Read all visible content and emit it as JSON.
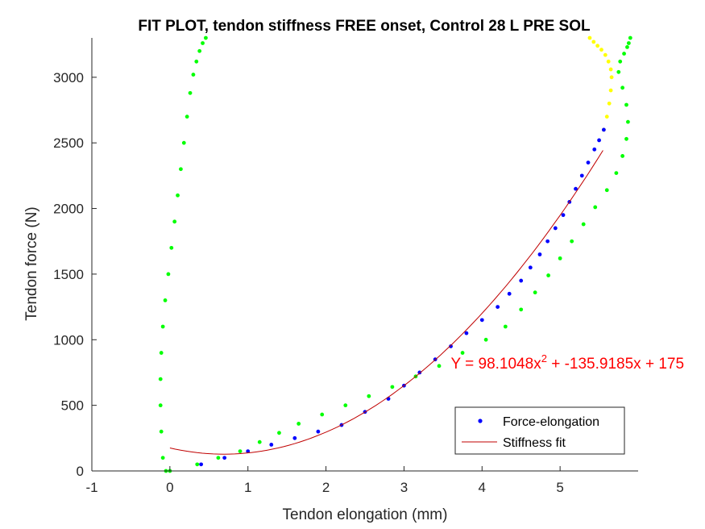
{
  "chart_data": {
    "type": "scatter",
    "title": "FIT PLOT, tendon stiffness FREE onset, Control 28 L PRE SOL",
    "xlabel": "Tendon elongation (mm)",
    "ylabel": "Tendon force (N)",
    "xlim": [
      -1,
      6
    ],
    "ylim": [
      0,
      3300
    ],
    "xticks": [
      -1,
      0,
      1,
      2,
      3,
      4,
      5
    ],
    "xtick_labels": [
      "-1",
      "0",
      "1",
      "2",
      "3",
      "4",
      "5"
    ],
    "yticks": [
      0,
      500,
      1000,
      1500,
      2000,
      2500,
      3000
    ],
    "ytick_labels": [
      "0",
      "500",
      "1000",
      "1500",
      "2000",
      "2500",
      "3000"
    ],
    "grid": false,
    "legend_position": "bottom-right",
    "legend": [
      {
        "label": "Force-elongation",
        "marker": "dot",
        "color": "#0000ff"
      },
      {
        "label": "Stiffness fit",
        "marker": "line",
        "color": "#c00000"
      }
    ],
    "annotation": {
      "text": "Y = 98.1048x",
      "superscript": "2",
      "rest": " + -135.9185x + 175",
      "color": "#ff0000",
      "x": 3.6,
      "y": 780
    },
    "fit": {
      "a": 98.1048,
      "b": -135.9185,
      "c": 175,
      "x_range": [
        0,
        5.55
      ],
      "color": "#c00000"
    },
    "series": [
      {
        "name": "Force-elongation",
        "color": "#0000ff",
        "x": [
          0.4,
          0.7,
          1.0,
          1.3,
          1.6,
          1.9,
          2.2,
          2.5,
          2.8,
          3.0,
          3.2,
          3.4,
          3.6,
          3.8,
          4.0,
          4.2,
          4.35,
          4.5,
          4.62,
          4.74,
          4.84,
          4.94,
          5.04,
          5.12,
          5.2,
          5.28,
          5.36,
          5.44,
          5.5,
          5.56
        ],
        "y": [
          50,
          100,
          150,
          200,
          250,
          300,
          350,
          450,
          550,
          650,
          750,
          850,
          950,
          1050,
          1150,
          1250,
          1350,
          1450,
          1550,
          1650,
          1750,
          1850,
          1950,
          2050,
          2150,
          2250,
          2350,
          2450,
          2520,
          2600
        ]
      },
      {
        "color": "#00ff00",
        "x": [
          0.0,
          0.35,
          0.62,
          0.9,
          1.15,
          1.4,
          1.65,
          1.95,
          2.25,
          2.55,
          2.85,
          3.15,
          3.45,
          3.75,
          4.05,
          4.3,
          4.5,
          4.68,
          4.85,
          5.0,
          5.15,
          5.3,
          5.45,
          5.6,
          5.72,
          5.8,
          5.85,
          5.87,
          5.85,
          5.8,
          5.75,
          5.77,
          5.82,
          5.86,
          5.88,
          5.9
        ],
        "y": [
          0,
          50,
          100,
          150,
          220,
          290,
          360,
          430,
          500,
          570,
          640,
          720,
          800,
          900,
          1000,
          1100,
          1230,
          1360,
          1490,
          1620,
          1750,
          1880,
          2010,
          2140,
          2270,
          2400,
          2530,
          2660,
          2790,
          2920,
          3040,
          3120,
          3180,
          3230,
          3260,
          3300
        ]
      },
      {
        "color": "#00ff00",
        "x": [
          -0.05,
          -0.09,
          -0.11,
          -0.12,
          -0.12,
          -0.11,
          -0.09,
          -0.06,
          -0.02,
          0.02,
          0.06,
          0.1,
          0.14,
          0.18,
          0.22,
          0.26,
          0.3,
          0.34,
          0.38,
          0.42,
          0.46
        ],
        "y": [
          0,
          100,
          300,
          500,
          700,
          900,
          1100,
          1300,
          1500,
          1700,
          1900,
          2100,
          2300,
          2500,
          2700,
          2880,
          3020,
          3120,
          3200,
          3260,
          3300
        ]
      },
      {
        "color": "#ffff00",
        "x": [
          5.56,
          5.6,
          5.63,
          5.65,
          5.66,
          5.65,
          5.62,
          5.58,
          5.53,
          5.48,
          5.43,
          5.38
        ],
        "y": [
          2600,
          2700,
          2800,
          2900,
          3000,
          3060,
          3120,
          3170,
          3210,
          3240,
          3270,
          3300
        ]
      }
    ]
  }
}
